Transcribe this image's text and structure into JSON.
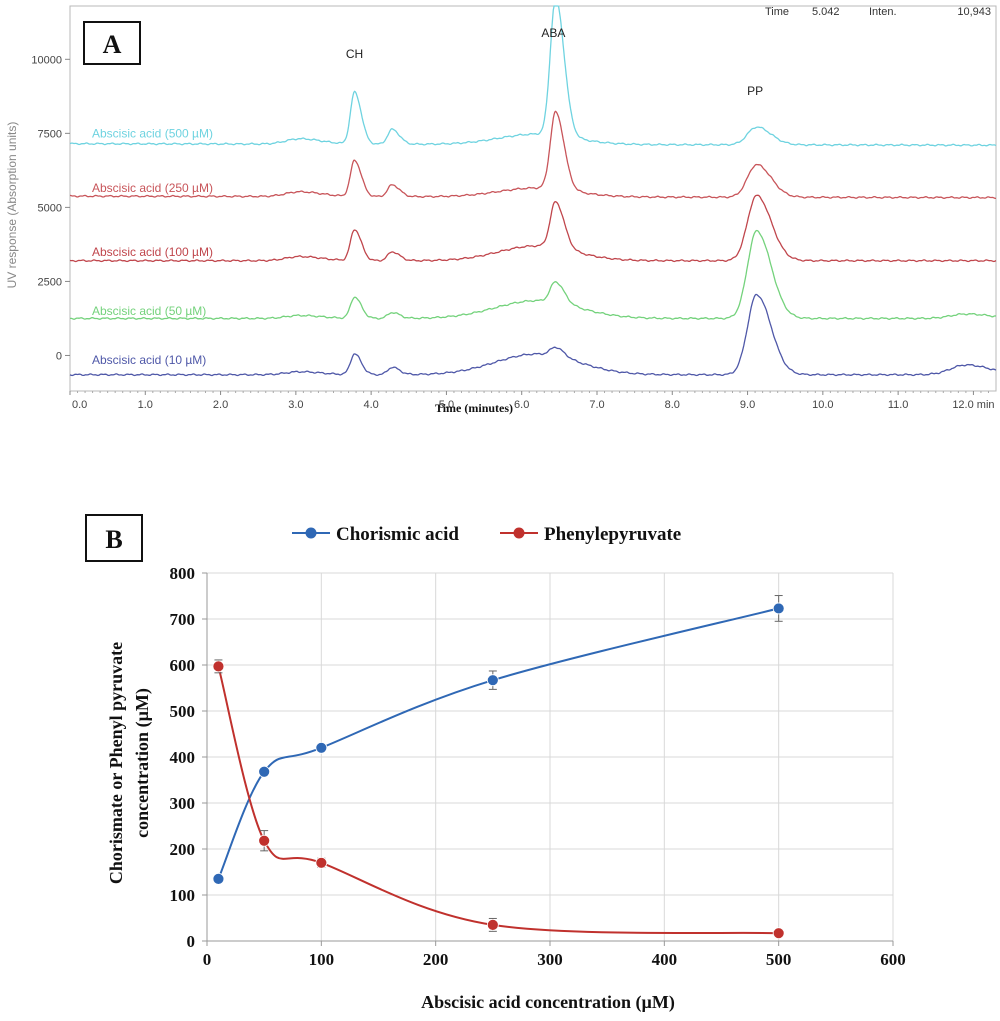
{
  "panel_a": {
    "label": "A",
    "readout": {
      "time_label": "Time",
      "time_value": "5.042",
      "inten_label": "Inten.",
      "inten_value": "10,943"
    }
  },
  "panel_b": {
    "label": "B"
  },
  "colors": {
    "trace_500": "#6fd3e0",
    "trace_250": "#c8555a",
    "trace_100": "#c0464c",
    "trace_50": "#74d27c",
    "trace_10": "#4f58a8",
    "chorismic": "#2f68b5",
    "phenylpyruvate": "#c0312d",
    "grid": "#d9d9d9"
  },
  "chart_data": [
    {
      "type": "line",
      "title": "",
      "xlabel": "Time (minutes)",
      "ylabel": "UV response (Absorption units)",
      "xlim": [
        0,
        12.3
      ],
      "ylim": [
        -1200,
        11800
      ],
      "x_ticks": [
        0,
        1,
        2,
        3,
        4,
        5,
        6,
        7,
        8,
        9,
        10,
        11,
        12
      ],
      "x_tick_labels": [
        "0.0",
        "1.0",
        "2.0",
        "3.0",
        "4.0",
        "5.0",
        "6.0",
        "7.0",
        "8.0",
        "9.0",
        "10.0",
        "11.0",
        "12.0 min"
      ],
      "y_ticks": [
        0,
        2500,
        5000,
        7500,
        10000
      ],
      "y_tick_labels": [
        "0",
        "2500",
        "5000",
        "7500",
        "10000"
      ],
      "peak_labels": [
        {
          "text": "CH",
          "time": 3.78,
          "value": 10050
        },
        {
          "text": "ABA",
          "time": 6.42,
          "value": 10750
        },
        {
          "text": "PP",
          "time": 9.1,
          "value": 8800
        }
      ],
      "series": [
        {
          "name": "Abscisic acid (500 µM)",
          "baseline": 7150,
          "end_baseline": 7100,
          "label_value": 7500,
          "peaks": [
            [
              3.05,
              180,
              0.18
            ],
            [
              3.78,
              1750,
              0.055
            ],
            [
              4.28,
              500,
              0.06
            ],
            [
              6.45,
              4650,
              0.07
            ],
            [
              9.12,
              600,
              0.12
            ]
          ],
          "broad": [
            [
              6.2,
              350,
              0.5
            ]
          ]
        },
        {
          "name": "Abscisic acid (250 µM)",
          "baseline": 5380,
          "end_baseline": 5330,
          "label_value": 5650,
          "peaks": [
            [
              3.05,
              160,
              0.18
            ],
            [
              3.78,
              1220,
              0.055
            ],
            [
              4.28,
              400,
              0.06
            ],
            [
              6.45,
              2600,
              0.07
            ],
            [
              9.12,
              1100,
              0.12
            ]
          ],
          "broad": [
            [
              6.2,
              300,
              0.5
            ]
          ]
        },
        {
          "name": "Abscisic acid (100 µM)",
          "baseline": 3200,
          "end_baseline": 3200,
          "label_value": 3500,
          "peaks": [
            [
              3.05,
              140,
              0.18
            ],
            [
              3.78,
              1050,
              0.055
            ],
            [
              4.28,
              300,
              0.06
            ],
            [
              6.45,
              1550,
              0.07
            ],
            [
              9.12,
              2200,
              0.12
            ]
          ],
          "broad": [
            [
              6.2,
              500,
              0.5
            ]
          ]
        },
        {
          "name": "Abscisic acid (50 µM)",
          "baseline": 1250,
          "end_baseline": 1250,
          "label_value": 1500,
          "peaks": [
            [
              3.05,
              100,
              0.18
            ],
            [
              3.78,
              720,
              0.055
            ],
            [
              4.28,
              200,
              0.06
            ],
            [
              6.45,
              700,
              0.07
            ],
            [
              9.12,
              2950,
              0.12
            ],
            [
              11.9,
              150,
              0.2
            ]
          ],
          "broad": [
            [
              6.2,
              600,
              0.55
            ]
          ]
        },
        {
          "name": "Abscisic acid (10 µM)",
          "baseline": -650,
          "end_baseline": -650,
          "label_value": -150,
          "peaks": [
            [
              3.05,
              100,
              0.18
            ],
            [
              3.78,
              700,
              0.055
            ],
            [
              4.28,
              250,
              0.06
            ],
            [
              6.45,
              300,
              0.07
            ],
            [
              9.12,
              2700,
              0.12
            ],
            [
              11.9,
              330,
              0.2
            ]
          ],
          "broad": [
            [
              6.2,
              700,
              0.55
            ]
          ]
        }
      ]
    },
    {
      "type": "scatter",
      "title": "",
      "xlabel": "Abscisic acid concentration  (µM)",
      "ylabel_line1": "Chorismate or Phenyl pyruvate",
      "ylabel_line2": "concentration (µM)",
      "xlim": [
        0,
        600
      ],
      "ylim": [
        0,
        800
      ],
      "x_ticks": [
        0,
        100,
        200,
        300,
        400,
        500,
        600
      ],
      "y_ticks": [
        0,
        100,
        200,
        300,
        400,
        500,
        600,
        700,
        800
      ],
      "grid": true,
      "legend_position": "top",
      "series": [
        {
          "name": "Chorismic acid",
          "x": [
            10,
            50,
            100,
            250,
            500
          ],
          "y": [
            135,
            368,
            420,
            567,
            723
          ],
          "err": [
            0,
            0,
            0,
            20,
            28
          ]
        },
        {
          "name": "Phenylepyruvate",
          "x": [
            10,
            50,
            100,
            250,
            500
          ],
          "y": [
            597,
            218,
            170,
            35,
            17
          ],
          "err": [
            14,
            22,
            10,
            14,
            0
          ]
        }
      ]
    }
  ]
}
